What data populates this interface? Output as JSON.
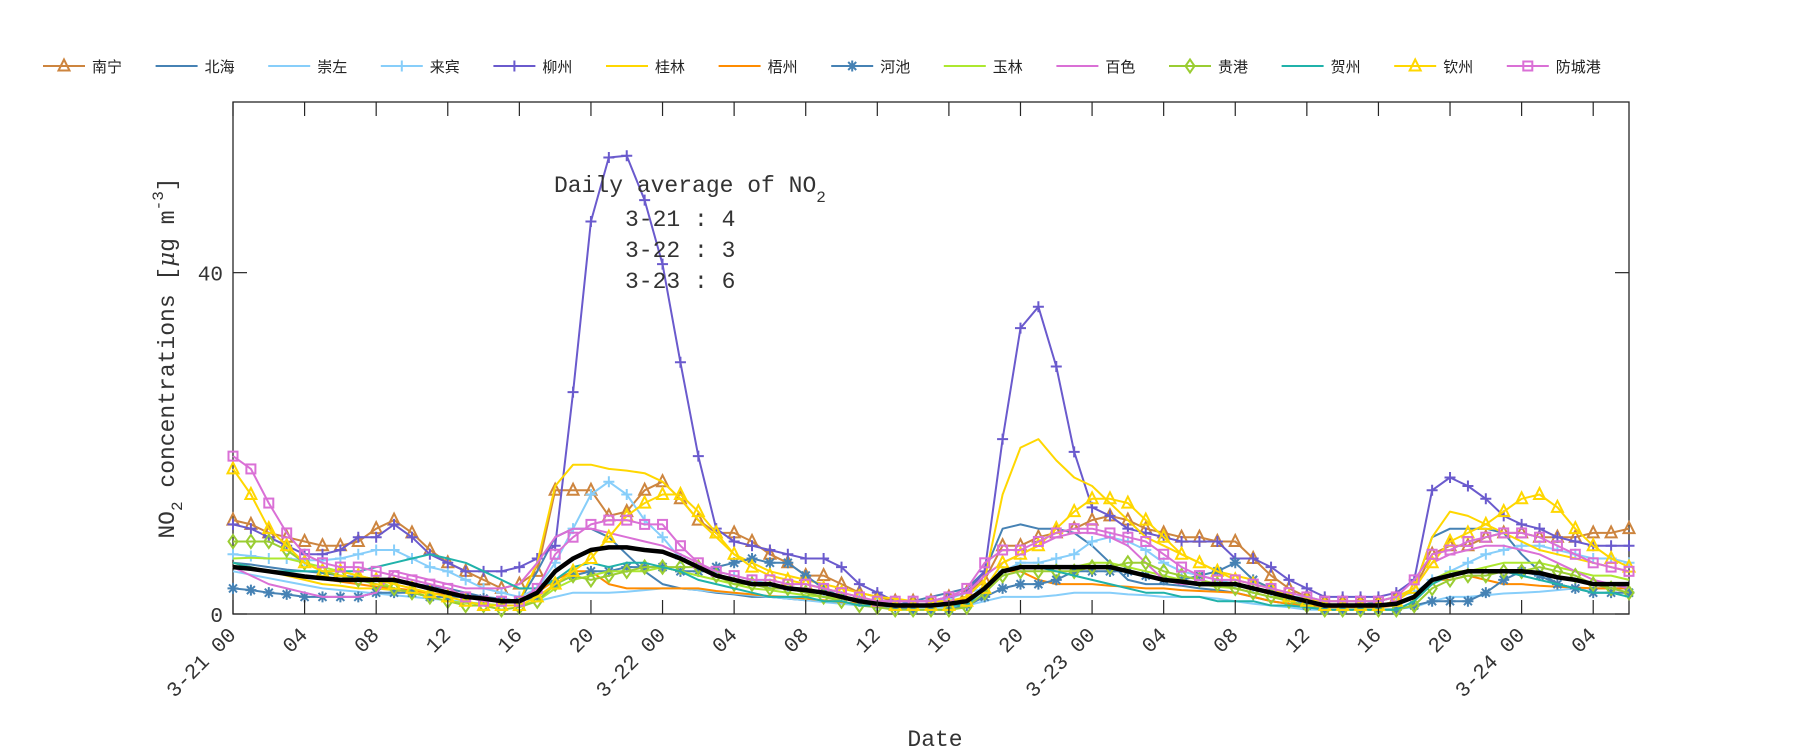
{
  "chart_data": {
    "type": "line",
    "xlabel": "Date",
    "ylabel": {
      "main": "NO",
      "sub": "2",
      "rest": " concentrations [",
      "mu": "μ",
      "unit": "g m",
      "sup": "-3",
      "close": "]"
    },
    "ylim": [
      0,
      60
    ],
    "yticks": [
      0,
      40
    ],
    "xlim_hours": [
      0,
      78
    ],
    "xtick_step_hours": 4,
    "xtick_labels": [
      "3-21 00",
      "04",
      "08",
      "12",
      "16",
      "20",
      "3-22 00",
      "04",
      "08",
      "12",
      "16",
      "20",
      "3-23 00",
      "04",
      "08",
      "12",
      "16",
      "20",
      "3-24 00",
      "04"
    ],
    "grid": false,
    "legend_placement": "top, outside plot, horizontal",
    "annotation": {
      "title": "Daily average of NO",
      "title_sub": "2",
      "lines": [
        "3-21 : 4",
        "3-22 : 3",
        "3-23 : 6"
      ]
    },
    "series": [
      {
        "name": "南宁",
        "color": "#CD853F",
        "marker": "triangle",
        "values": [
          11,
          10.5,
          9.5,
          9,
          8.5,
          8,
          8,
          8.5,
          10,
          11,
          9.5,
          7.5,
          6,
          5,
          4,
          3,
          3.5,
          5,
          14.5,
          14.5,
          14.5,
          11.5,
          12,
          14.5,
          15.5,
          13.5,
          11,
          9.5,
          9.5,
          8.5,
          7,
          6,
          4.5,
          4.5,
          3.5,
          2.5,
          2,
          1.5,
          1.5,
          1.5,
          2,
          2.5,
          4,
          8,
          8,
          9,
          9.5,
          10,
          11,
          11.5,
          11,
          10,
          9.5,
          9,
          9,
          8.5,
          8.5,
          6.5,
          4.5,
          3,
          2,
          1.5,
          1.5,
          1.5,
          1.5,
          2,
          3,
          7,
          8,
          8,
          9,
          9.5,
          9.5,
          9,
          9,
          9,
          9.5,
          9.5,
          10
        ]
      },
      {
        "name": "北海",
        "color": "#4682B4",
        "marker": "none",
        "values": [
          6,
          5.8,
          5.5,
          5.2,
          5,
          4.8,
          4.5,
          4.3,
          4,
          3.8,
          3.5,
          3.3,
          3,
          2.5,
          2,
          1.8,
          1.5,
          5,
          9,
          10,
          10,
          9,
          7,
          5,
          3.5,
          3,
          2.8,
          2.5,
          2.3,
          2,
          2,
          1.8,
          1.6,
          1.5,
          1.3,
          1.2,
          1,
          1,
          1.5,
          2,
          2.5,
          3,
          5,
          10,
          10.5,
          10,
          10,
          9.5,
          8,
          6,
          4,
          3.5,
          3.5,
          3.3,
          3,
          2.8,
          2.5,
          2,
          1.5,
          1.2,
          1,
          1,
          1,
          1,
          1.5,
          2,
          3,
          9,
          10,
          10,
          10,
          9.5,
          7,
          5,
          3.5,
          3,
          3,
          3,
          3
        ]
      },
      {
        "name": "崇左",
        "color": "#87CEFA",
        "marker": "none",
        "values": [
          5,
          4.6,
          4.2,
          3.8,
          3.4,
          3,
          2.8,
          2.6,
          2.4,
          2.2,
          2,
          1.8,
          1.6,
          1.4,
          1.2,
          1,
          1,
          1.5,
          2,
          2.5,
          2.5,
          2.5,
          2.6,
          2.8,
          3,
          3,
          2.8,
          2.6,
          2.4,
          2.2,
          2,
          1.8,
          1.6,
          1.4,
          1.2,
          1,
          1,
          0.8,
          0.8,
          0.8,
          0.8,
          1,
          1.5,
          2,
          2,
          2,
          2.2,
          2.5,
          2.5,
          2.5,
          2.3,
          2.2,
          2,
          2,
          2,
          1.8,
          1.5,
          1.2,
          1,
          0.8,
          0.5,
          0.5,
          0.5,
          0.5,
          0.5,
          0.6,
          0.8,
          1.5,
          2,
          2,
          2.2,
          2.4,
          2.5,
          2.6,
          2.8,
          3,
          3,
          3,
          3
        ]
      },
      {
        "name": "来宾",
        "color": "#87CEFA",
        "marker": "plus",
        "values": [
          7,
          6.8,
          6.5,
          6.5,
          6.3,
          6.3,
          6.5,
          7,
          7.5,
          7.5,
          6.5,
          5.5,
          5,
          4,
          3,
          2.5,
          2,
          3,
          6,
          10,
          14,
          15.5,
          14,
          11,
          9,
          6.5,
          5.5,
          5,
          4.5,
          4,
          3.5,
          3,
          3,
          2.5,
          2,
          1.8,
          1.5,
          1.5,
          1.5,
          1.5,
          1.8,
          2.5,
          3,
          5,
          6,
          6,
          6.5,
          7,
          8.5,
          9,
          8.5,
          7.5,
          6,
          5,
          4.5,
          4,
          3.5,
          3,
          2.5,
          2,
          2,
          1.5,
          1.5,
          1.5,
          1.5,
          2,
          2.5,
          4,
          5,
          6,
          7,
          7.5,
          8,
          8,
          7.5,
          7,
          6.5,
          6.5,
          6
        ]
      },
      {
        "name": "柳州",
        "color": "#6A5ACD",
        "marker": "plus",
        "values": [
          10.5,
          10,
          9,
          8,
          7,
          7,
          7.5,
          9,
          9,
          10.5,
          9,
          7,
          6,
          5,
          5,
          5,
          5.5,
          6.5,
          8,
          26,
          46,
          53.5,
          53.7,
          48.5,
          41,
          29.5,
          18.5,
          10,
          8.5,
          8,
          7.5,
          7,
          6.5,
          6.5,
          5.5,
          3.5,
          2.5,
          1.5,
          1.5,
          1.5,
          2,
          2.5,
          5,
          20.5,
          33.5,
          36,
          29,
          19,
          12.5,
          11.5,
          10,
          9.5,
          9,
          8.5,
          8.5,
          8.5,
          6.5,
          6.5,
          5.5,
          4,
          3,
          2,
          2,
          2,
          2,
          2.5,
          4,
          14.5,
          16,
          15,
          13.5,
          11.5,
          10.5,
          10,
          9,
          8.5,
          8,
          8,
          8
        ]
      },
      {
        "name": "桂林",
        "color": "#FFD700",
        "marker": "none",
        "values": [
          6,
          5.5,
          5,
          4.5,
          4,
          3.5,
          3.3,
          3,
          3,
          2.8,
          2.6,
          2.4,
          2.2,
          2,
          1.8,
          1.5,
          1.5,
          6,
          15,
          17.5,
          17.5,
          17,
          16.8,
          16.5,
          15.5,
          13.5,
          11,
          9,
          7,
          6,
          5,
          4.5,
          4,
          3.5,
          3,
          2.5,
          2,
          1.8,
          1.5,
          1.5,
          1.5,
          2,
          4,
          14,
          19.5,
          20.5,
          18,
          16,
          15,
          13,
          11,
          9,
          8,
          7,
          6,
          5,
          4.5,
          4,
          3,
          2,
          1.8,
          1.5,
          1.5,
          1.5,
          1.5,
          2,
          3,
          9,
          12,
          11.5,
          10.5,
          9.5,
          8.5,
          7.5,
          7,
          6.5,
          6,
          5.5,
          5
        ]
      },
      {
        "name": "梧州",
        "color": "#FF8C00",
        "marker": "none",
        "values": [
          5.5,
          5.2,
          5,
          4.7,
          4.4,
          4.1,
          3.8,
          3.5,
          3.2,
          3,
          2.8,
          2.5,
          2.2,
          2,
          1.8,
          1.6,
          1.5,
          2.5,
          4,
          5,
          5,
          3.5,
          3,
          3,
          3,
          3,
          3,
          2.7,
          2.5,
          2.3,
          2.1,
          2,
          1.8,
          1.6,
          1.4,
          1.2,
          1,
          1,
          1,
          1,
          1.2,
          1.8,
          3,
          5,
          5,
          4,
          3.5,
          3.5,
          3.5,
          3.3,
          3.2,
          3,
          3,
          2.8,
          2.7,
          2.6,
          2.5,
          2,
          1.5,
          1.2,
          1,
          0.8,
          0.8,
          0.8,
          0.8,
          1,
          2,
          4,
          4,
          4.5,
          4,
          3.5,
          3.5,
          3.3,
          3.2,
          3.1,
          3,
          3,
          3
        ]
      },
      {
        "name": "河池",
        "color": "#4682B4",
        "marker": "asterisk",
        "values": [
          3,
          2.8,
          2.5,
          2.3,
          2,
          2,
          2,
          2,
          2.5,
          2.5,
          2.5,
          2,
          2,
          2,
          1.8,
          1.5,
          1.5,
          2,
          3.5,
          4.5,
          5,
          5,
          5.5,
          5.5,
          5.5,
          5,
          5,
          5.5,
          6,
          6.5,
          6,
          6,
          4.5,
          3,
          2,
          1.5,
          1,
          0.8,
          0.5,
          0.5,
          0.5,
          1,
          2,
          3,
          3.5,
          3.5,
          4,
          5,
          5,
          5,
          5,
          4.5,
          4,
          4,
          4.5,
          5,
          6,
          4,
          3,
          2,
          1,
          0.5,
          0.5,
          0.5,
          0.5,
          0.5,
          1,
          1.5,
          1.5,
          1.5,
          2.5,
          4,
          5,
          4.5,
          3.5,
          3,
          2.5,
          2.5,
          2.5
        ]
      },
      {
        "name": "玉林",
        "color": "#ADE82F",
        "marker": "none",
        "values": [
          6.5,
          6.6,
          6.5,
          6.5,
          6,
          5.5,
          5,
          4.5,
          4,
          3,
          2.5,
          2,
          1.5,
          1.3,
          1.2,
          1,
          1,
          1.5,
          3,
          4,
          4.5,
          5,
          5,
          5,
          5.5,
          5,
          4.5,
          4,
          3.5,
          3,
          2.8,
          2.5,
          2.2,
          2,
          1.8,
          1.5,
          1.2,
          1,
          1,
          1,
          1.2,
          1.5,
          3,
          5,
          5.5,
          5.5,
          5.5,
          5.5,
          6,
          6,
          5.5,
          5,
          4.5,
          4,
          3.5,
          3.2,
          3,
          2.5,
          2,
          1.8,
          1.5,
          1.2,
          1,
          1,
          1,
          1.2,
          2,
          4,
          5,
          5,
          5.5,
          6,
          6,
          6,
          5.5,
          5,
          4.5,
          4.5,
          4
        ]
      },
      {
        "name": "百色",
        "color": "#DA70D6",
        "marker": "none",
        "values": [
          5.5,
          4.5,
          3.5,
          3,
          2.5,
          2,
          2,
          2,
          2.5,
          5,
          4.5,
          4,
          3.5,
          3,
          3,
          3,
          3.5,
          6,
          9,
          10,
          10,
          9.5,
          9,
          8.5,
          8,
          7,
          6,
          4.5,
          4,
          3.5,
          3,
          3,
          3,
          2.5,
          2,
          1.5,
          1.5,
          1.5,
          1.5,
          1.5,
          2,
          2.5,
          4.5,
          6,
          7,
          8,
          9,
          9.5,
          9.5,
          9,
          8,
          6,
          4,
          3.5,
          3.5,
          3.5,
          3.5,
          3,
          2.5,
          2,
          1.5,
          1,
          1,
          1,
          1,
          1.5,
          3,
          6,
          7,
          7.5,
          8,
          8,
          7.5,
          7,
          6,
          5,
          4,
          3.5,
          3
        ]
      },
      {
        "name": "贵港",
        "color": "#9ACD32",
        "marker": "diamond",
        "values": [
          8.5,
          8.5,
          8.5,
          7.5,
          6,
          5,
          4.5,
          4,
          3.5,
          3,
          2.5,
          2,
          1.5,
          1,
          1,
          0.5,
          0.8,
          1.5,
          3.5,
          4.5,
          4,
          4.5,
          5,
          5.5,
          5.5,
          5.5,
          5.5,
          4.5,
          3.5,
          3.5,
          3,
          3,
          2.5,
          2,
          1.5,
          1,
          0.8,
          0.5,
          0.5,
          0.5,
          0.5,
          0.8,
          2.5,
          4.5,
          5,
          5,
          5,
          5,
          5.5,
          5.5,
          6,
          6,
          5,
          4.5,
          4,
          3.5,
          3,
          2.5,
          2,
          1.5,
          1,
          0.5,
          0.5,
          0.5,
          0.5,
          0.5,
          1,
          3,
          4,
          4.5,
          4.5,
          5,
          5,
          5.5,
          5,
          4.5,
          3.5,
          3,
          2.5
        ]
      },
      {
        "name": "贺州",
        "color": "#20B2AA",
        "marker": "none",
        "values": [
          6,
          5.5,
          5,
          5,
          5,
          5,
          5,
          5,
          5.5,
          6,
          6.5,
          7,
          6.5,
          6,
          5,
          4,
          3,
          3,
          4,
          5.5,
          6,
          5.5,
          6,
          6,
          5.5,
          5,
          4,
          3.5,
          3,
          2.5,
          2,
          2,
          2,
          1.5,
          1.5,
          1,
          1,
          1,
          1,
          1,
          1,
          1,
          3,
          5,
          5.5,
          5.5,
          5,
          4.5,
          4,
          3.5,
          3,
          2.5,
          2.5,
          2,
          2,
          1.5,
          1.5,
          1.5,
          1,
          1,
          0.8,
          0.5,
          0.5,
          0.5,
          0.5,
          0.5,
          1.5,
          3.5,
          4.5,
          5,
          5,
          5,
          4.5,
          4,
          3.5,
          3,
          2.5,
          2.5,
          2
        ]
      },
      {
        "name": "钦州",
        "color": "#FFD700",
        "marker": "triangle",
        "values": [
          17,
          14,
          10,
          8,
          6,
          5,
          5,
          4.5,
          4,
          3.5,
          3,
          2.5,
          2,
          1.5,
          1,
          1,
          1,
          2,
          3.5,
          5,
          6.5,
          9,
          11.5,
          13,
          14,
          14,
          12,
          9.5,
          7,
          5.5,
          4.5,
          4,
          3.5,
          3,
          2.5,
          2,
          1.5,
          1,
          1,
          1,
          1,
          1.5,
          3,
          6,
          7,
          8,
          10,
          12,
          13.5,
          13.5,
          13,
          11,
          9,
          7,
          6,
          5,
          4,
          3.5,
          3,
          2,
          1.5,
          1,
          1,
          1,
          1,
          1.5,
          3,
          6,
          8.5,
          9.5,
          10.5,
          12,
          13.5,
          14,
          12.5,
          10,
          8,
          6.5,
          5.5
        ]
      },
      {
        "name": "防城港",
        "color": "#DA70D6",
        "marker": "square",
        "values": [
          18.5,
          17,
          13,
          9.5,
          7,
          6,
          5.5,
          5.5,
          5,
          4.5,
          4,
          3.5,
          3,
          2,
          1.5,
          1.5,
          1.5,
          3,
          7,
          9,
          10.5,
          11,
          11,
          10.5,
          10.5,
          8,
          6,
          5,
          4.5,
          4,
          4,
          3.5,
          3.5,
          3,
          2.5,
          2,
          1.5,
          1.5,
          1.5,
          1.5,
          2,
          3,
          6,
          7.5,
          7.5,
          8.5,
          9.5,
          10,
          10,
          9.5,
          9,
          8.5,
          7,
          5.5,
          4.5,
          4,
          4,
          3.5,
          3,
          2.5,
          2,
          1.5,
          1.5,
          1.5,
          1.5,
          2,
          4,
          7,
          7.5,
          8.5,
          9,
          9.5,
          9.5,
          9,
          8,
          7,
          6,
          5.5,
          5
        ]
      },
      {
        "color": "#000000",
        "marker": "none",
        "thick": true,
        "values": [
          5.5,
          5.3,
          5,
          4.7,
          4.4,
          4.2,
          4,
          4,
          4,
          4,
          3.5,
          3,
          2.5,
          2,
          1.8,
          1.5,
          1.5,
          2.5,
          5,
          6.5,
          7.5,
          7.8,
          7.8,
          7.5,
          7.3,
          6.5,
          5.5,
          4.5,
          4,
          3.5,
          3.5,
          3,
          2.8,
          2.5,
          2,
          1.5,
          1.2,
          1,
          1,
          1,
          1.2,
          1.5,
          3,
          5,
          5.5,
          5.5,
          5.5,
          5.5,
          5.5,
          5.5,
          5,
          4.5,
          4,
          3.8,
          3.5,
          3.5,
          3.5,
          3,
          2.5,
          2,
          1.5,
          1,
          1,
          1,
          1,
          1.2,
          2,
          4,
          4.5,
          5,
          5,
          5,
          5,
          4.8,
          4.3,
          4,
          3.5,
          3.5,
          3.5
        ]
      }
    ]
  }
}
